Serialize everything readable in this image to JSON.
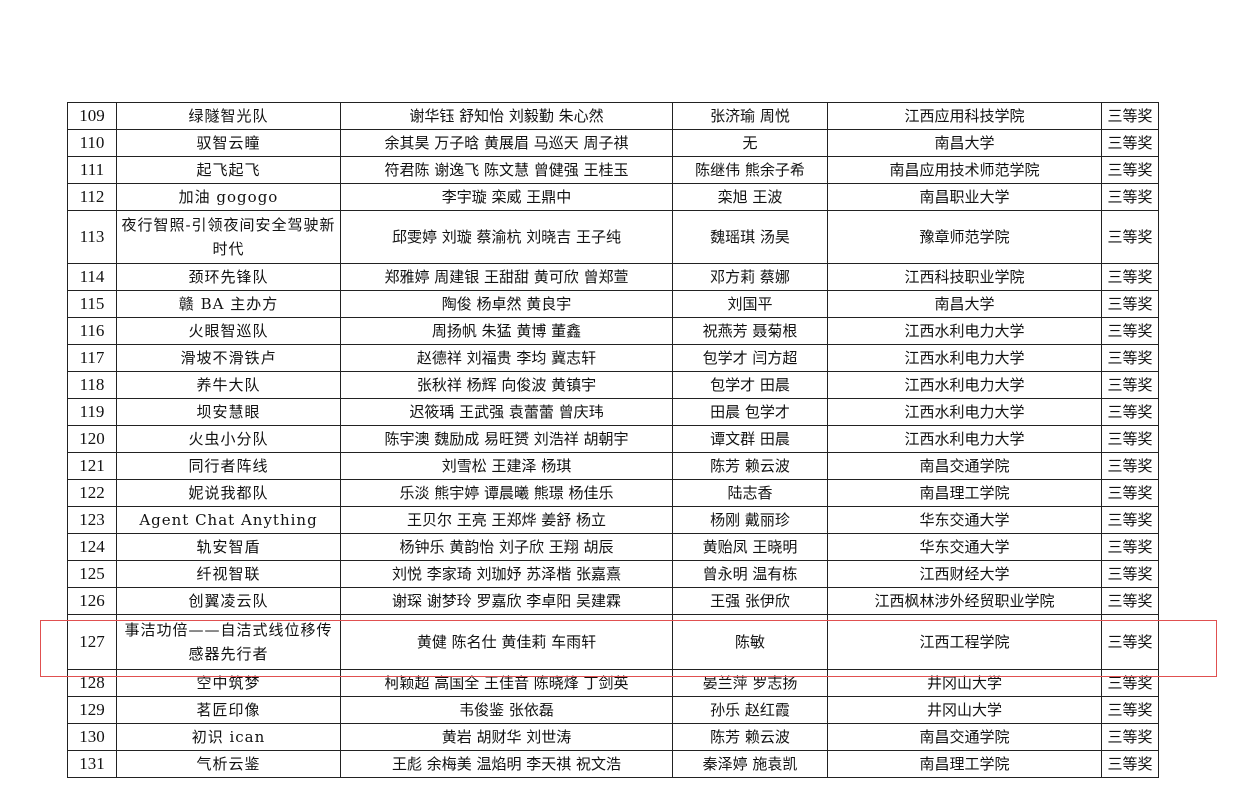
{
  "rows": [
    {
      "no": "109",
      "team": "绿隧智光队",
      "members": "谢华钰 舒知怡 刘毅勤 朱心然",
      "advisors": "张济瑜 周悦",
      "school": "江西应用科技学院",
      "award": "三等奖"
    },
    {
      "no": "110",
      "team": "驭智云瞳",
      "members": "余其昊 万子晗 黄展眉 马巡天 周子祺",
      "advisors": "无",
      "school": "南昌大学",
      "award": "三等奖"
    },
    {
      "no": "111",
      "team": "起飞起飞",
      "members": "符君陈 谢逸飞 陈文慧 曾健强 王桂玉",
      "advisors": "陈继伟 熊余子希",
      "school": "南昌应用技术师范学院",
      "award": "三等奖"
    },
    {
      "no": "112",
      "team": "加油 gogogo",
      "members": "李宇璇 栾威 王鼎中",
      "advisors": "栾旭 王波",
      "school": "南昌职业大学",
      "award": "三等奖"
    },
    {
      "no": "113",
      "team": "夜行智照-引领夜间安全驾驶新时代",
      "members": "邱雯婷 刘璇 蔡渝杭 刘晓吉 王子纯",
      "advisors": "魏瑶琪 汤昊",
      "school": "豫章师范学院",
      "award": "三等奖"
    },
    {
      "no": "114",
      "team": "颈环先锋队",
      "members": "郑雅婷 周建银 王甜甜 黄可欣 曾郑萱",
      "advisors": "邓方莉 蔡娜",
      "school": "江西科技职业学院",
      "award": "三等奖"
    },
    {
      "no": "115",
      "team": "赣 BA 主办方",
      "members": "陶俊 杨卓然 黄良宇",
      "advisors": "刘国平",
      "school": "南昌大学",
      "award": "三等奖"
    },
    {
      "no": "116",
      "team": "火眼智巡队",
      "members": "周扬帆 朱猛 黄博 董鑫",
      "advisors": "祝燕芳 聂菊根",
      "school": "江西水利电力大学",
      "award": "三等奖"
    },
    {
      "no": "117",
      "team": "滑坡不滑铁卢",
      "members": "赵德祥 刘福贵 李均 冀志轩",
      "advisors": "包学才 闫方超",
      "school": "江西水利电力大学",
      "award": "三等奖"
    },
    {
      "no": "118",
      "team": "养牛大队",
      "members": "张秋祥 杨辉 向俊波 黄镇宇",
      "advisors": "包学才 田晨",
      "school": "江西水利电力大学",
      "award": "三等奖"
    },
    {
      "no": "119",
      "team": "坝安慧眼",
      "members": "迟筱瑀 王武强 袁蕾蕾 曾庆玮",
      "advisors": "田晨 包学才",
      "school": "江西水利电力大学",
      "award": "三等奖"
    },
    {
      "no": "120",
      "team": "火虫小分队",
      "members": "陈宇澳 魏励成 易旺赟 刘浩祥 胡朝宇",
      "advisors": "谭文群 田晨",
      "school": "江西水利电力大学",
      "award": "三等奖"
    },
    {
      "no": "121",
      "team": "同行者阵线",
      "members": "刘雪松 王建泽 杨琪",
      "advisors": "陈芳 赖云波",
      "school": "南昌交通学院",
      "award": "三等奖"
    },
    {
      "no": "122",
      "team": "妮说我都队",
      "members": "乐淡 熊宇婷 谭晨曦 熊璟 杨佳乐",
      "advisors": "陆志香",
      "school": "南昌理工学院",
      "award": "三等奖"
    },
    {
      "no": "123",
      "team": "Agent Chat Anything",
      "members": "王贝尔 王亮 王郑烨 姜舒 杨立",
      "advisors": "杨刚 戴丽珍",
      "school": "华东交通大学",
      "award": "三等奖"
    },
    {
      "no": "124",
      "team": "轨安智盾",
      "members": "杨钟乐 黄韵怡 刘子欣 王翔 胡辰",
      "advisors": "黄贻凤 王晓明",
      "school": "华东交通大学",
      "award": "三等奖"
    },
    {
      "no": "125",
      "team": "纤视智联",
      "members": "刘悦 李家琦 刘珈妤 苏泽楷 张嘉熹",
      "advisors": "曾永明 温有栋",
      "school": "江西财经大学",
      "award": "三等奖"
    },
    {
      "no": "126",
      "team": "创翼凌云队",
      "members": "谢琛 谢梦玲 罗嘉欣 李卓阳 吴建霖",
      "advisors": "王强 张伊欣",
      "school": "江西枫林涉外经贸职业学院",
      "award": "三等奖"
    },
    {
      "no": "127",
      "team": "事洁功倍——自洁式线位移传感器先行者",
      "members": "黄健 陈名仕 黄佳莉 车雨轩",
      "advisors": "陈敏",
      "school": "江西工程学院",
      "award": "三等奖"
    },
    {
      "no": "128",
      "team": "空中筑梦",
      "members": "柯颖超 高国全 王佳音 陈晓烽 丁剑英",
      "advisors": "晏兰萍 罗志扬",
      "school": "井冈山大学",
      "award": "三等奖"
    },
    {
      "no": "129",
      "team": "茗匠印像",
      "members": "韦俊鉴 张依磊",
      "advisors": "孙乐 赵红霞",
      "school": "井冈山大学",
      "award": "三等奖"
    },
    {
      "no": "130",
      "team": "初识 ican",
      "members": "黄岩 胡财华 刘世涛",
      "advisors": "陈芳 赖云波",
      "school": "南昌交通学院",
      "award": "三等奖"
    },
    {
      "no": "131",
      "team": "气析云鉴",
      "members": "王彪 余梅美 温焰明 李天祺 祝文浩",
      "advisors": "秦泽婷 施袁凯",
      "school": "南昌理工学院",
      "award": "三等奖"
    }
  ],
  "highlight": {
    "row_no": "127",
    "color": "#e05050"
  }
}
